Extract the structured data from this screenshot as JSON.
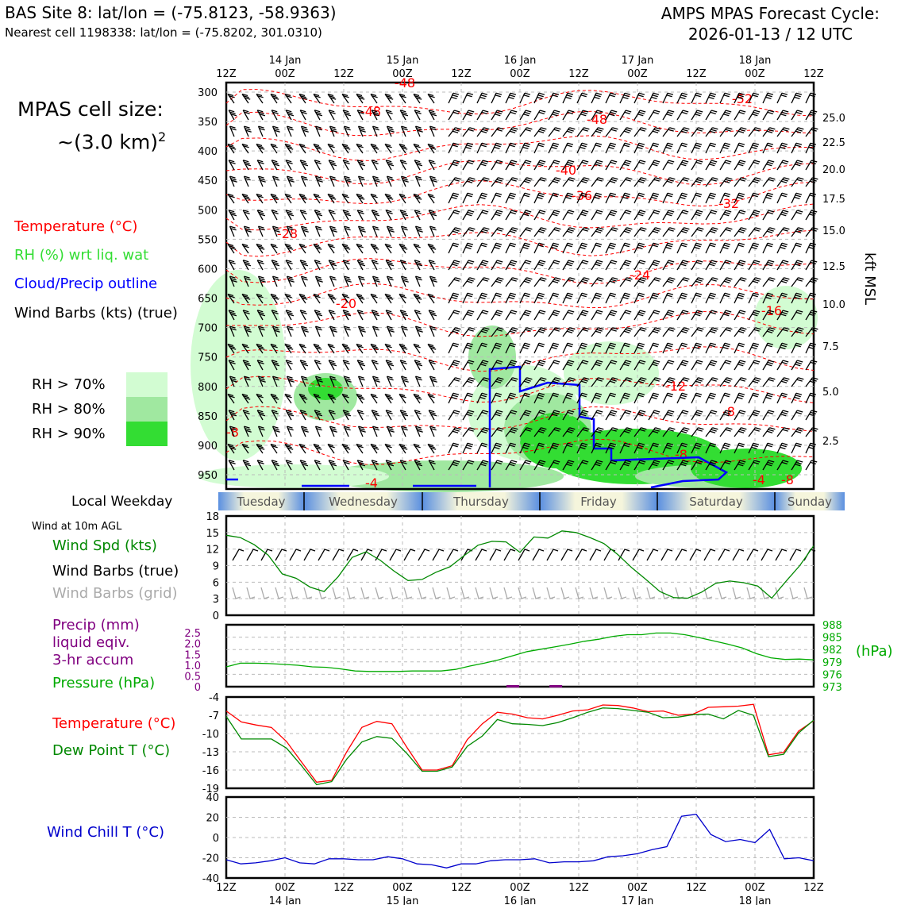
{
  "header": {
    "site_line": "BAS Site 8: lat/lon = (-75.8123, -58.9363)",
    "cell_line": "Nearest cell 1198338: lat/lon = (-75.8202, 301.0310)",
    "cycle_line1": "AMPS MPAS Forecast Cycle:",
    "cycle_line2": "2026-01-13 / 12 UTC"
  },
  "cell_size": {
    "line1": "MPAS cell size:",
    "line2": "~(3.0 km)",
    "sup": "2"
  },
  "legend_upper": {
    "temperature": "Temperature (°C)",
    "rh": "RH (%) wrt liq. wat",
    "cloud": "Cloud/Precip outline",
    "barbs": "Wind Barbs (kts) (true)"
  },
  "rh_legend": [
    {
      "label": "RH > 70%",
      "color": "#d2fcd2"
    },
    {
      "label": "RH > 80%",
      "color": "#a0e8a0"
    },
    {
      "label": "RH > 90%",
      "color": "#33dd33"
    }
  ],
  "colors": {
    "temp": "#ff0000",
    "rh_green": "#33dd33",
    "cloud": "#0000ff",
    "wind_speed": "#008800",
    "barb_grid": "#aaaaaa",
    "precip": "#800080",
    "pressure": "#00aa00",
    "dewpoint": "#008800",
    "windchill": "#0000cc",
    "weekday_blue": "#5a8fe0",
    "weekday_cream": "#f5f5dc"
  },
  "weekday": {
    "label": "Local Weekday",
    "days": [
      "Tuesday",
      "Wednesday",
      "Thursday",
      "Friday",
      "Saturday",
      "Sunday"
    ]
  },
  "side_labels": {
    "wind10m": "Wind at 10m AGL",
    "wind_spd": "Wind Spd (kts)",
    "barbs_true": "Wind Barbs (true)",
    "barbs_grid": "Wind Barbs (grid)",
    "precip1": "Precip (mm)",
    "precip2": "liquid eqiv.",
    "precip3": "3-hr accum",
    "pressure": "Pressure (hPa)",
    "temperature": "Temperature (°C)",
    "dewpoint": "Dew Point T (°C)",
    "windchill": "Wind Chill T (°C)",
    "hpa_unit": "(hPa)",
    "kft_unit": "kft MSL"
  },
  "chart_data": [
    {
      "type": "heatmap",
      "name_panel": "profile",
      "x": [
        "12Z",
        "00Z",
        "12Z",
        "00Z",
        "12Z",
        "00Z",
        "12Z",
        "00Z",
        "12Z",
        "00Z",
        "12Z"
      ],
      "x_dates": [
        "14 Jan",
        "15 Jan",
        "16 Jan",
        "17 Jan",
        "18 Jan"
      ],
      "pressure_levels": [
        300,
        350,
        400,
        450,
        500,
        550,
        600,
        650,
        700,
        750,
        800,
        850,
        900,
        950
      ],
      "kft_levels": [
        "25.0",
        "22.5",
        "20.0",
        "17.5",
        "15.0",
        "12.5",
        "10.0",
        "7.5",
        "5.0",
        "2.5"
      ],
      "temperature_contour_labels": [
        "-48",
        "-48",
        "-52",
        "-48",
        "-40",
        "-36",
        "-32",
        "-28",
        "-24",
        "-20",
        "-16",
        "-12",
        "-8",
        "-8",
        "-8",
        "-4",
        "-4",
        "-8"
      ]
    },
    {
      "type": "line",
      "name_panel": "wind",
      "ylim": [
        0,
        18
      ],
      "yticks": [
        0,
        3,
        6,
        9,
        12,
        15,
        18
      ],
      "series": [
        {
          "name": "Wind Spd (kts)",
          "values": [
            14.5,
            14.1,
            12.8,
            10.9,
            7.5,
            6.7,
            5.1,
            4.3,
            7.0,
            10.5,
            11.5,
            10.0,
            8.0,
            6.3,
            6.5,
            7.8,
            8.8,
            10.8,
            12.7,
            13.4,
            13.3,
            11.4,
            14.2,
            14.0,
            15.3,
            15.0,
            14.1,
            13.0,
            11.0,
            8.6,
            6.5,
            4.3,
            3.2,
            3.1,
            4.2,
            5.8,
            6.2,
            5.9,
            5.3,
            3.1,
            6.1,
            9.0,
            12.6
          ]
        }
      ]
    },
    {
      "type": "line",
      "name_panel": "pressure",
      "ylim": [
        973,
        988
      ],
      "yticks": [
        973,
        976,
        979,
        982,
        985,
        988
      ],
      "precip_yticks": [
        "0",
        "0.5",
        "1.0",
        "1.5",
        "2.0",
        "2.5"
      ],
      "series": [
        {
          "name": "Pressure (hPa)",
          "values": [
            977.8,
            978.7,
            978.7,
            978.6,
            978.4,
            978.2,
            977.8,
            977.7,
            977.3,
            976.8,
            976.7,
            976.7,
            976.7,
            976.8,
            976.8,
            976.8,
            977.2,
            978.0,
            978.7,
            979.5,
            980.5,
            981.5,
            982.1,
            982.7,
            983.3,
            984.0,
            984.5,
            985.2,
            985.6,
            985.6,
            986.0,
            986.0,
            985.6,
            984.9,
            984.1,
            983.3,
            982.4,
            981.0,
            980.0,
            979.6,
            979.7,
            979.5
          ]
        },
        {
          "name": "Precip (mm)",
          "values": [
            0,
            0,
            0,
            0,
            0,
            0,
            0,
            0,
            0,
            0,
            0,
            0,
            0,
            0,
            0,
            0,
            0,
            0,
            0,
            0,
            0.05,
            0,
            0,
            0.05,
            0,
            0,
            0,
            0,
            0,
            0,
            0,
            0,
            0,
            0,
            0,
            0,
            0,
            0,
            0,
            0,
            0,
            0
          ]
        }
      ]
    },
    {
      "type": "line",
      "name_panel": "temperature",
      "ylim": [
        -19,
        -4
      ],
      "yticks": [
        -19,
        -16,
        -13,
        -10,
        -7,
        -4
      ],
      "series": [
        {
          "name": "Temperature (°C)",
          "values": [
            -6.3,
            -8.1,
            -8.6,
            -9.0,
            -11.3,
            -14.7,
            -18.0,
            -17.7,
            -13.0,
            -9.0,
            -8.0,
            -8.4,
            -12.3,
            -16.0,
            -16.0,
            -15.3,
            -11.0,
            -8.4,
            -6.5,
            -6.8,
            -7.4,
            -7.6,
            -7.0,
            -6.3,
            -6.1,
            -5.3,
            -5.4,
            -5.8,
            -6.4,
            -6.3,
            -7.0,
            -6.8,
            -5.7,
            -5.6,
            -5.5,
            -5.2,
            -13.5,
            -13.1,
            -9.6,
            -7.9
          ]
        },
        {
          "name": "Dew Point T (°C)",
          "values": [
            -7.2,
            -10.9,
            -10.9,
            -10.9,
            -12.4,
            -15.3,
            -18.4,
            -17.9,
            -14.2,
            -11.4,
            -10.5,
            -10.8,
            -13.3,
            -16.2,
            -16.2,
            -15.5,
            -12.1,
            -10.4,
            -7.7,
            -8.4,
            -8.5,
            -8.7,
            -8.2,
            -7.4,
            -6.5,
            -5.8,
            -5.9,
            -6.2,
            -6.5,
            -7.4,
            -7.3,
            -6.9,
            -6.8,
            -7.6,
            -6.2,
            -7.0,
            -13.8,
            -13.4,
            -9.9,
            -7.8
          ]
        }
      ]
    },
    {
      "type": "line",
      "name_panel": "windchill",
      "ylim": [
        -40,
        40
      ],
      "yticks": [
        -40,
        -20,
        0,
        20,
        40
      ],
      "series": [
        {
          "name": "Wind Chill T (°C)",
          "values": [
            -22,
            -26,
            -25,
            -23,
            -20,
            -25,
            -26,
            -21,
            -21,
            -22,
            -22,
            -19,
            -21,
            -26,
            -27,
            -30,
            -26,
            -26,
            -23,
            -22,
            -22,
            -21,
            -25,
            -24,
            -24,
            -23,
            -19,
            -18,
            -16,
            -12,
            -9,
            21,
            23,
            3,
            -4,
            -2,
            -5,
            8,
            -21,
            -20,
            -23
          ]
        }
      ]
    }
  ]
}
